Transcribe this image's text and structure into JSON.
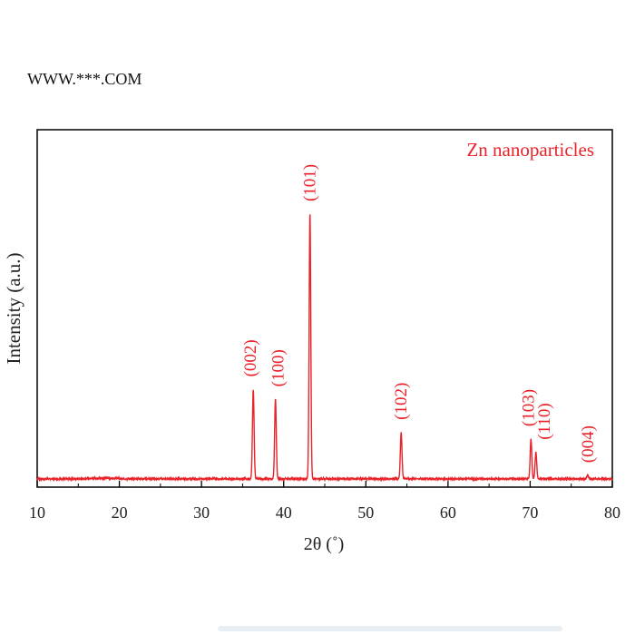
{
  "watermark": "WWW.***.COM",
  "chart_data": {
    "type": "line",
    "title": "Zn nanoparticles",
    "xlabel": "2θ (˚)",
    "ylabel": "Intensity (a.u.)",
    "xlim": [
      10,
      80
    ],
    "xticks": [
      10,
      20,
      30,
      40,
      50,
      60,
      70,
      80
    ],
    "ylim": [
      0,
      1.08
    ],
    "grid": false,
    "legend": "none",
    "series_color": "#e8232a",
    "baseline": 0.025,
    "peaks": [
      {
        "label": "(002)",
        "x": 36.3,
        "y": 0.27
      },
      {
        "label": "(100)",
        "x": 39.0,
        "y": 0.24
      },
      {
        "label": "(101)",
        "x": 43.2,
        "y": 0.8
      },
      {
        "label": "(102)",
        "x": 54.3,
        "y": 0.14
      },
      {
        "label": "(103)",
        "x": 70.1,
        "y": 0.12
      },
      {
        "label": "(110)",
        "x": 70.7,
        "y": 0.08
      },
      {
        "label": "(004)",
        "x": 77.0,
        "y": 0.01
      }
    ]
  }
}
